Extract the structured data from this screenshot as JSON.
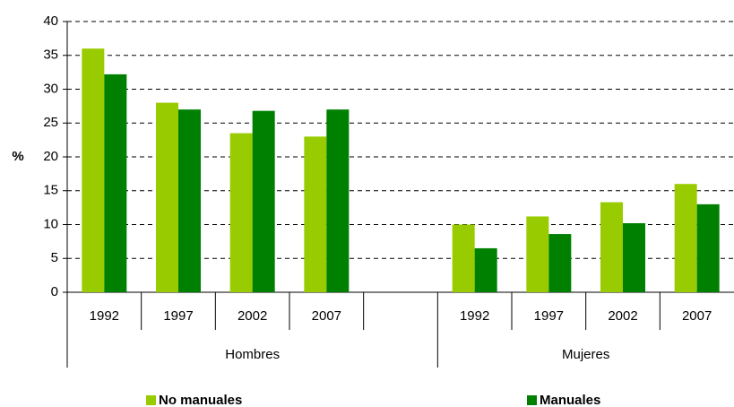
{
  "chart_data": {
    "type": "bar",
    "y_label": "%",
    "categories": [
      "1992",
      "1997",
      "2002",
      "2007",
      null,
      "1992",
      "1997",
      "2002",
      "2007"
    ],
    "groups": [
      "Hombres",
      "Mujeres"
    ],
    "series": [
      {
        "name": "No manuales",
        "color": "#99cc00",
        "values": [
          36,
          28,
          23.5,
          23,
          null,
          10,
          11.2,
          13.3,
          16
        ]
      },
      {
        "name": "Manuales",
        "color": "#008000",
        "values": [
          32.2,
          27,
          26.8,
          27,
          null,
          6.5,
          8.6,
          10.2,
          13
        ]
      }
    ],
    "ylim": [
      0,
      40
    ],
    "yticks": [
      0,
      5,
      10,
      15,
      20,
      25,
      30,
      35,
      40
    ],
    "grid": true
  }
}
